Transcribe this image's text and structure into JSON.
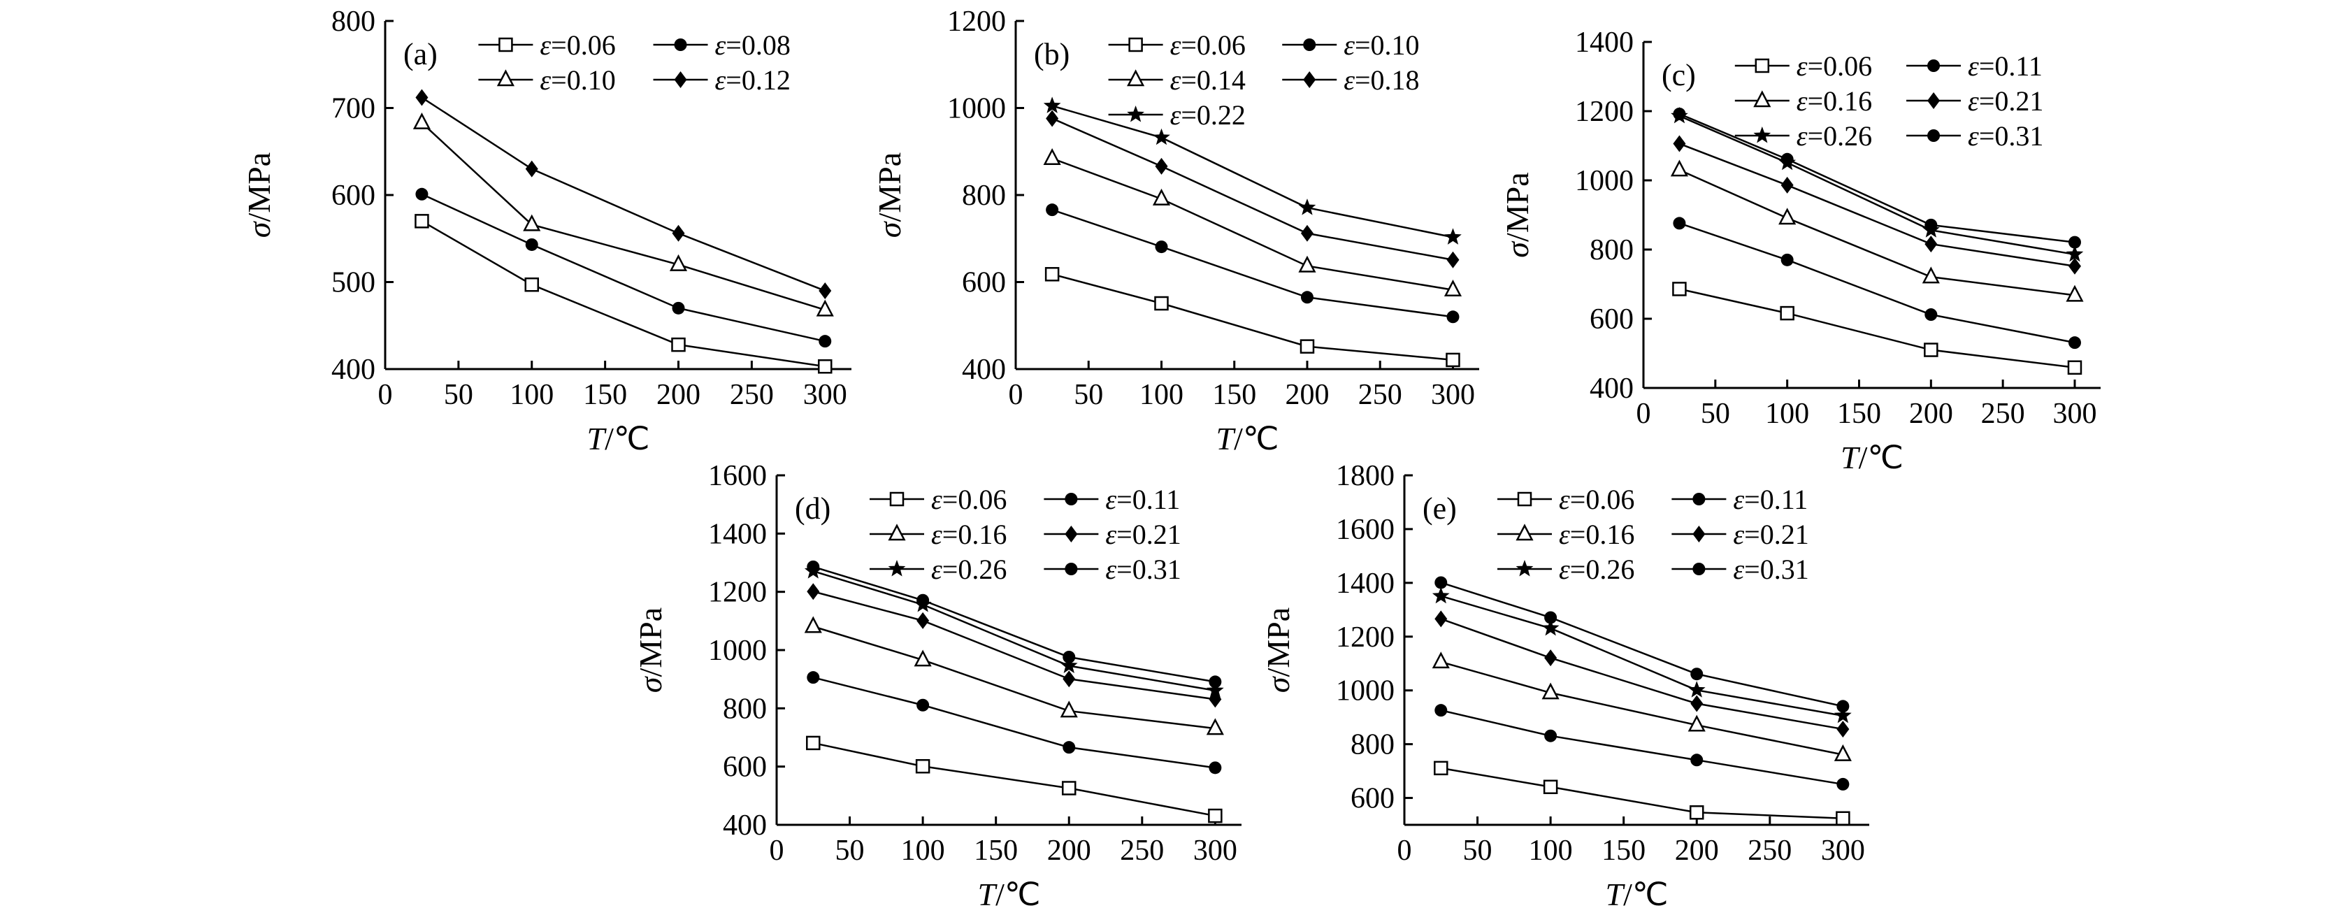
{
  "figure": {
    "background": "#ffffff",
    "line_color": "#000000",
    "text_color": "#000000",
    "description_labels": [
      "(a)",
      "(b)",
      "(c)",
      "(d)",
      "(e)"
    ]
  },
  "chart_data": [
    {
      "id": "a",
      "panel_label": "(a)",
      "type": "line",
      "xlabel": "T/℃",
      "ylabel": "σ/MPa",
      "xlim": [
        0,
        318
      ],
      "xticks": [
        0,
        50,
        100,
        150,
        200,
        250,
        300
      ],
      "ylim": [
        400,
        800
      ],
      "yticks": [
        400,
        500,
        600,
        700,
        800
      ],
      "x": [
        25,
        100,
        200,
        300
      ],
      "grid": false,
      "legend_position": "top-inside",
      "legend_columns": 2,
      "series": [
        {
          "name": "ε=0.06",
          "marker": "open-square",
          "values": [
            570,
            497,
            428,
            403
          ]
        },
        {
          "name": "ε=0.08",
          "marker": "filled-circle",
          "values": [
            601,
            543,
            470,
            432
          ]
        },
        {
          "name": "ε=0.10",
          "marker": "open-triangle",
          "values": [
            683,
            566,
            520,
            468
          ]
        },
        {
          "name": "ε=0.12",
          "marker": "filled-diamond",
          "values": [
            712,
            630,
            556,
            490
          ]
        }
      ]
    },
    {
      "id": "b",
      "panel_label": "(b)",
      "type": "line",
      "xlabel": "T/℃",
      "ylabel": "σ/MPa",
      "xlim": [
        0,
        318
      ],
      "xticks": [
        0,
        50,
        100,
        150,
        200,
        250,
        300
      ],
      "ylim": [
        400,
        1200
      ],
      "yticks": [
        400,
        600,
        800,
        1000,
        1200
      ],
      "x": [
        25,
        100,
        200,
        300
      ],
      "grid": false,
      "legend_position": "top-inside",
      "legend_columns": 2,
      "series": [
        {
          "name": "ε=0.06",
          "marker": "open-square",
          "values": [
            618,
            551,
            452,
            421
          ]
        },
        {
          "name": "ε=0.10",
          "marker": "filled-circle",
          "values": [
            766,
            681,
            565,
            520
          ]
        },
        {
          "name": "ε=0.14",
          "marker": "open-triangle",
          "values": [
            884,
            791,
            637,
            582
          ]
        },
        {
          "name": "ε=0.18",
          "marker": "filled-diamond",
          "values": [
            976,
            866,
            712,
            651
          ]
        },
        {
          "name": "ε=0.22",
          "marker": "filled-star",
          "values": [
            1005,
            932,
            771,
            703
          ]
        }
      ]
    },
    {
      "id": "c",
      "panel_label": "(c)",
      "type": "line",
      "xlabel": "T/℃",
      "ylabel": "σ/MPa",
      "xlim": [
        0,
        318
      ],
      "xticks": [
        0,
        50,
        100,
        150,
        200,
        250,
        300
      ],
      "ylim": [
        400,
        1400
      ],
      "yticks": [
        400,
        600,
        800,
        1000,
        1200,
        1400
      ],
      "x": [
        25,
        100,
        200,
        300
      ],
      "grid": false,
      "legend_position": "top-inside",
      "legend_columns": 2,
      "series": [
        {
          "name": "ε=0.06",
          "marker": "open-square",
          "values": [
            686,
            616,
            510,
            459
          ]
        },
        {
          "name": "ε=0.11",
          "marker": "filled-circle",
          "values": [
            876,
            770,
            612,
            531
          ]
        },
        {
          "name": "ε=0.16",
          "marker": "open-triangle",
          "values": [
            1030,
            891,
            721,
            668
          ]
        },
        {
          "name": "ε=0.21",
          "marker": "filled-diamond",
          "values": [
            1106,
            986,
            816,
            752
          ]
        },
        {
          "name": "ε=0.26",
          "marker": "filled-star",
          "values": [
            1186,
            1051,
            856,
            786
          ]
        },
        {
          "name": "ε=0.31",
          "marker": "filled-circle",
          "values": [
            1192,
            1061,
            871,
            821
          ]
        }
      ]
    },
    {
      "id": "d",
      "panel_label": "(d)",
      "type": "line",
      "xlabel": "T/℃",
      "ylabel": "σ/MPa",
      "xlim": [
        0,
        318
      ],
      "xticks": [
        0,
        50,
        100,
        150,
        200,
        250,
        300
      ],
      "ylim": [
        400,
        1600
      ],
      "yticks": [
        400,
        600,
        800,
        1000,
        1200,
        1400,
        1600
      ],
      "x": [
        25,
        100,
        200,
        300
      ],
      "grid": false,
      "legend_position": "top-inside",
      "legend_columns": 2,
      "series": [
        {
          "name": "ε=0.06",
          "marker": "open-square",
          "values": [
            681,
            601,
            526,
            431
          ]
        },
        {
          "name": "ε=0.11",
          "marker": "filled-circle",
          "values": [
            906,
            811,
            666,
            596
          ]
        },
        {
          "name": "ε=0.16",
          "marker": "open-triangle",
          "values": [
            1081,
            966,
            791,
            731
          ]
        },
        {
          "name": "ε=0.21",
          "marker": "filled-diamond",
          "values": [
            1201,
            1101,
            901,
            831
          ]
        },
        {
          "name": "ε=0.26",
          "marker": "filled-star",
          "values": [
            1271,
            1156,
            946,
            861
          ]
        },
        {
          "name": "ε=0.31",
          "marker": "filled-circle",
          "values": [
            1286,
            1171,
            976,
            891
          ]
        }
      ]
    },
    {
      "id": "e",
      "panel_label": "(e)",
      "type": "line",
      "xlabel": "T/℃",
      "ylabel": "σ/MPa",
      "xlim": [
        0,
        318
      ],
      "xticks": [
        0,
        50,
        100,
        150,
        200,
        250,
        300
      ],
      "ylim": [
        500,
        1800
      ],
      "yticks": [
        600,
        800,
        1000,
        1200,
        1400,
        1600,
        1800
      ],
      "x": [
        25,
        100,
        200,
        300
      ],
      "grid": false,
      "legend_position": "top-inside",
      "legend_columns": 2,
      "series": [
        {
          "name": "ε=0.06",
          "marker": "open-square",
          "values": [
            711,
            641,
            546,
            524
          ]
        },
        {
          "name": "ε=0.11",
          "marker": "filled-circle",
          "values": [
            926,
            831,
            741,
            651
          ]
        },
        {
          "name": "ε=0.16",
          "marker": "open-triangle",
          "values": [
            1106,
            991,
            871,
            761
          ]
        },
        {
          "name": "ε=0.21",
          "marker": "filled-diamond",
          "values": [
            1266,
            1121,
            951,
            856
          ]
        },
        {
          "name": "ε=0.26",
          "marker": "filled-star",
          "values": [
            1351,
            1231,
            1001,
            906
          ]
        },
        {
          "name": "ε=0.31",
          "marker": "filled-circle",
          "values": [
            1401,
            1271,
            1061,
            941
          ]
        }
      ]
    }
  ]
}
